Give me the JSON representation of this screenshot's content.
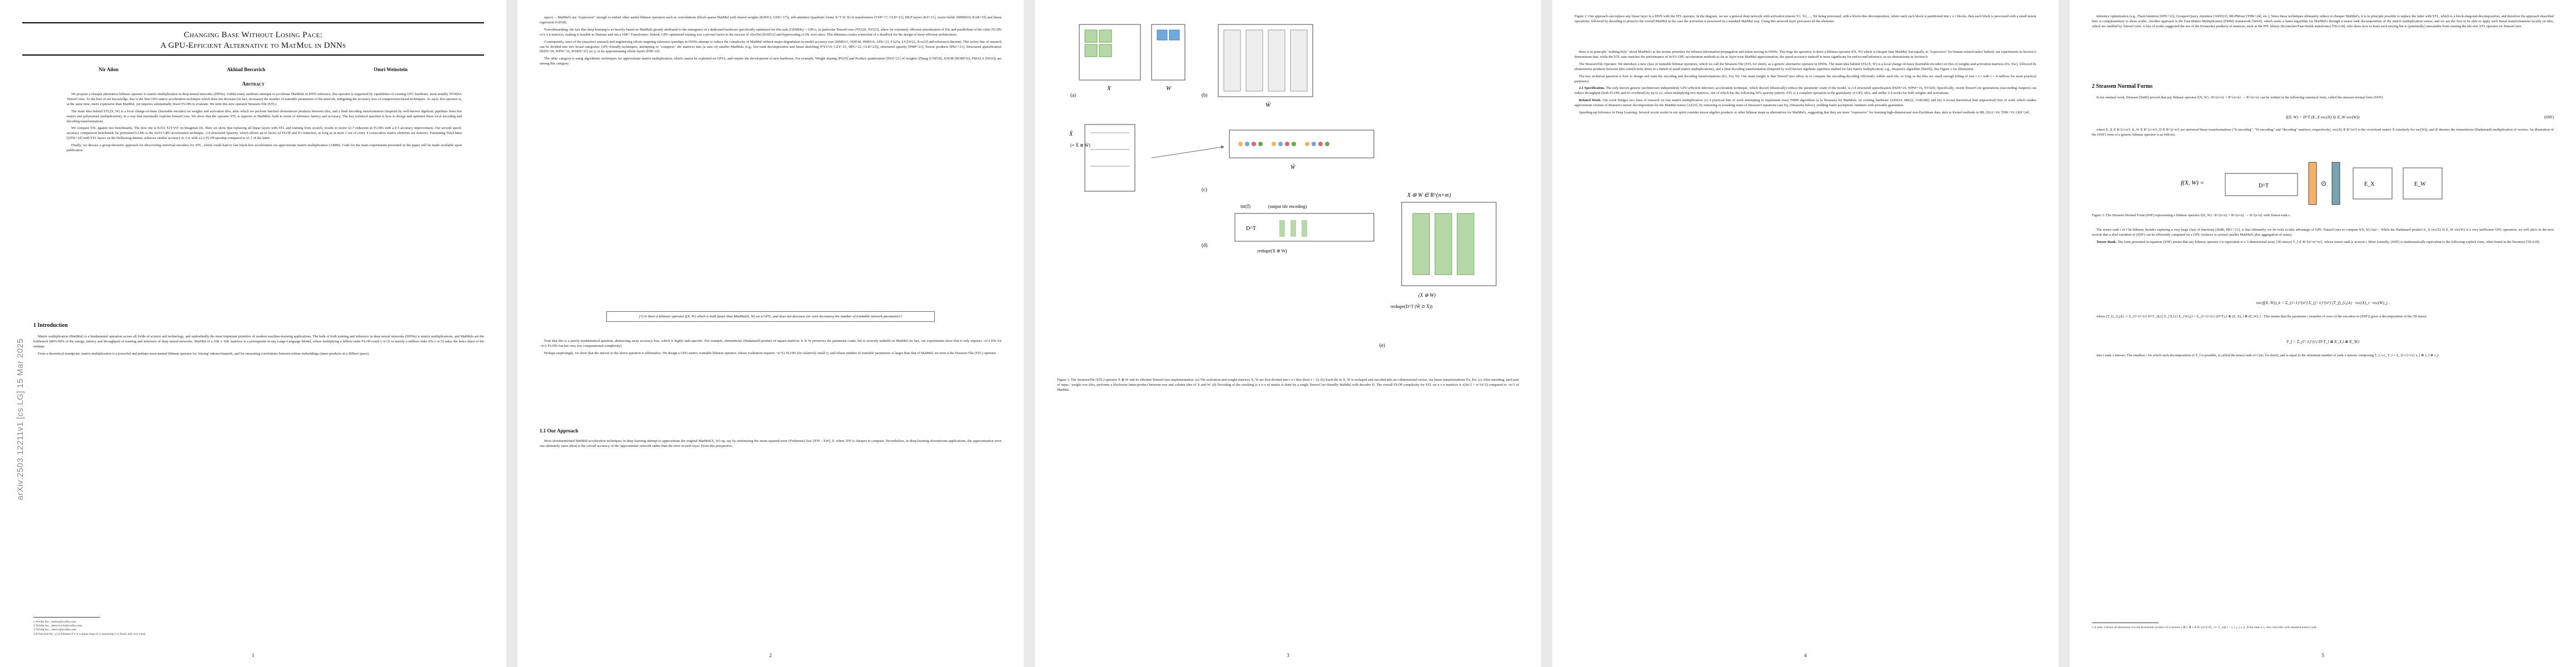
{
  "arxiv_id": "arXiv:2503.12211v1  [cs.LG]  15 Mar 2025",
  "paper": {
    "title_line1": "Changing Base Without Losing Pace:",
    "title_line2": "A GPU-Efficient Alternative to MatMul in DNNs",
    "authors": [
      "Nir Ailon",
      "Akhiad Bercovich",
      "Omri Weinstein"
    ],
    "abstract_heading": "Abstract",
    "abstract_p1": "We propose a cheaper alternative bilinear operator to matrix-multiplication in deep neural networks (DNNs). Unlike many stubborn attempts to accelerate MatMuls in DNN inference, this operator is supported by capabilities of existing GPU hardware, most notably NVIDIA TensorCores. To the best of our knowledge, this is the first GPU-native acceleration technique which does not decrease (in fact, increases) the number of trainable parameters of the network, mitigating the accuracy-loss of compression-based techniques. As such, this operator is, at the same time, more expressive than MatMul, yet requires substantially fewer FLOPs to evaluate. We term this new operator Strassen-Tile (STL).",
    "abstract_p2": "The main idea behind STL(X, W) is a local change-of-basis (learnable encoder) on weights and activation tiles, after which we perform batched elementwise products between tiles, and a final decoding transformation (inspired by well-known algebraic pipelines from fast matrix and polynomial multiplication), in a way that maximally exploits TensorCores. We show that the operator STL is superior to MatMuls, both in terms of inference latency and accuracy. The key technical question is how to design and optimize these local encoding and decoding transformations.",
    "abstract_p3": "We compare STL against two benchmarks. The first one is SoTA T2T-ViT on Imagenet-1K. Here we show that replacing all linear layers with STL and training from scratch, results in factor x2.7 reduction in FLOPs with a 0.5 accuracy improvement. Our second speed-accuracy comparison benchmark for pretrained LLMs is the SoTA GPU-acceleration technique, 2:4 structured Sparsity, which allows up to factor x2 FLOP and IO reduction, as long as at most 2 out of every 4 consecutive matrix elements are nonzero. Finetuning TinyLlama [ZZW+24] with STL layers on the Hellaswag dataset, achieves similar accuracy to 2:4, with x2.2 FLOP speedup compared to x1.7 of the latter.",
    "abstract_p4": "Finally, we discuss a group-theoretic approach for discovering universal encoders for STL, which could lead to fast black-box acceleration via approximate matrix-multiplication (AMM). Code for the main experiments presented in the paper will be made available upon publication.",
    "intro_heading": "1   Introduction",
    "intro_p1": "Matrix multiplication (MatMul) is a fundamental operation across all fields of science and technology, and undoubtedly the most important primitive of modern machine-learning applications. The bulk of both training and inference in deep neural networks (DNNs) is matrix multiplications, and MatMuls are the bottleneck (80%-90% of the energy, latency and throughput) of training and inference of deep neural networks. MatMul of a 16K x 16K matrices is a prerequisite in any Large-Language Model, where multiplying a billion-order FLOP-count (~n^3) or merely a million-order IOs (~n^2) takes the lion's share of the runtime.",
    "intro_p2": "From a theoretical standpoint, matrix multiplication is a powerful and perhaps most natural bilinear operator for 'mixing' tokens/channels, and for measuring correlations between tokens embeddings (inner-products in a Hilbert space).",
    "footnotes": [
      "1 Nvidia Inc., nailon@nvidia.com.",
      "2 Nvidia Inc., abercovich@nvidia.com.",
      "3 Nvidia Inc., omriw@nvidia.com.",
      "4 A function f(x, y) is bilinear if it is a linear map of x; assuming x is fixed, and vice versa."
    ],
    "p2_p1": "space) -- MatMul's are \"expressive\" enough to embed other useful bilinear operators such as convolutions (block-sparse MatMul with shared weights [KSH12, GDG+17]), self-attention (quadratic forms X^T W X) in transformers [VSP+17, CLD+21], MLP layers [KZ+21], vector-fields [MMM19, RAB+19] and linear regression [GH18].",
    "p2_p2": "Notwithstanding, the fact that deep learning is so heavily based on MatMuls greatly attributed to the emergence of a dedicated hardware specifically optimized for this task (GEMMs) -- GPUs, in particular TensorCores [NVI20, NVI23], allow for extremely efficient amortization of IOs and parallelism of the cubic FLOPs of n x n matrices, making it feasible to finetune and run a 10B+ Transformer. Indeed, GPU-optimized training was a pivotal factor in the success of AlexNet [KSH12] and hyperscaling of DL ever since. This dilemma creates somewhat of a deadlock for the design of more efficient architectures.",
    "p2_p3": "Consequently, most of the (massive) research and engineering efforts targeting inference speedups in DNNs attempt to reduce the complexity of MatMul without major degradation in model accuracy (see [HMD15, ODD18, HMD16, AFK+23, FA23a, LVZW22, Xco23] and references therein). This active line of research can be divided into two broad categories: GPU-friendly techniques, attempting to \"compress\" the matrices into (a sum of) smaller MatMuls (e.g., low-rank decomposition and linear sketching [FYV19, CZY+21, HPG+22, CLH+22]), structured sparsity [PMP+21], Tensor products [PKC+21], Structured sparsification [HZH+24, WPW+16, HARN+21] etc.); or by approximating whole layers [FIR+22].",
    "p2_p4": "The other category is using algorithmic techniques for approximate matrix multiplication, which cannot be exploited on GPUs, and require the development of new hardware. For example, Weight sharing [PQ19] and Product quantization [HZZ+21] of weights (Zhang [CNP18], XNOR [RORF16], FMALA [NJ16]) are among this category.",
    "p2_boxq": "(*) Is there a bilinear operator f(X, W) which is both faster than MatMul(X, W) on a GPU, and does not decrease (or even increases) the number of trainable network parameters?",
    "p2_p5": "Note that this is a purely mathematical question, abstracting away accuracy-loss, which is highly task-specific. For example, elementwise (Hadamard) product of square matrices X ⊙ W preserves the parameter count, but is severely underfit on MatMul (in fact, our experiments show that it only requires ~n^2 IOs for ~n^2 FLOPs but has very low computational complexity).",
    "p2_p6": "Perhaps surprisingly, we show that the answer to the above question is affirmative. We design a GPU-native, trainable bilinear operator, whose evaluation requires ~n^3/r FLOPs (for relatively small r), and whose number of trainable parameters is larger than that of MatMul; we term it the Strassen-Tile (STL) operator.",
    "p2_sub_heading": "1.1   Our Approach",
    "p2_p7": "Most aforementioned MatMul-acceleration techniques in deep learning attempt to approximate the original MatMul(X, W) op, say by minimizing the mean-squared-error (Frobenius) loss ||XW - XW||_F, where XW is cheaper to compute. Nevertheless, in deep-learning downstream applications, the approximation error one ultimately cares about is the overall accuracy of the 'approximate' network rather than the error in each layer. From this perspective,",
    "fig1_caption": "Figure 1: The StrassenTile (STL) operator X ⊛ W and its efficient TensorCores implementation. (a) The activation and weight matrices X, W are first divided into t x t tiles (here t = 2); (b) Each tile in X, W is reshaped and encoded into an r-dimensional vector, via linear transformations Ex, Ew. (c) After encoding, each pair of input / weight row tiles, performs a blockwise inner-product between row and column tiles of X and W. (d) Decoding of the resulting (r x n x n) matrix is done by a single TensorCore-friendly MatMul with decoder D. The overall FLOP complexity for STL on n x n matrices is r(3n^2 + n^3/t^2) compared to ~n^3 of MatMul.",
    "p3_para1": "there is in principle \"nothing holy\" about MatMul's as the atomic primitive for bilinear information-propagation and token-mixing in DNNs. This begs the question: Is there a bilinear operator f(X, W) which is cheaper than MatMul, but equally as \"expressive\" for human-related tasks? Indeed, our experiments in Section 6 demonstrate that, while the STL ratio matches the performance of SoTA GPU acceleration methods as far as layer-wise MatMul approximation, the speed-accuracy tradeoff is more significant for end-to-end inference, as we demonstrate in Section 6.",
    "p3_para2": "The StrassenTile Operator. We introduce a new class of trainable bilinear operators, which we call the Strassen-Tile (STL for short), as a generic alternative operator in DNNs. The main idea behind STL(X, W) is a local change-of-basis (learnable encoder) on tiles of weights and activation matrices (Ex, Ew), followed by elementwise products between tiles (which boils down to a bunch of small matrix multiplications), and a final decoding transformation (inspired by well-known algebraic pipelines studied for fast matrix multiplication, e.g., Strassen's algorithm [Str69]), See Figure 1 for illustration.",
    "p3_para3": "The key technical question is how to design and train the encoding and decoding transformations (Ex, Ew, D). Our main insight is that TensorCores allow us to compute the encoding-decoding efficiently within each tile, so long as the tiles are small enough (tiling of size t x t with t = 4 suffices for most practical purposes).",
    "p3_sub1": "2.1 Specification.",
    "p3_para4": "The only known generic (architecture-independent) GPU-efficient inference acceleration technique, which doesn't (drastically) reduce the parameter count of the model, is 2:4 structured sparsification [HZH+24, WPW+16, NVI20]. Specifically, recent TensorCore generations (succeeding Ampere) can reduce throughput (both FLOPs and IO overhead) by up to x2, when multiplying two matrices, one of which has the following 50% sparsity pattern. STL is a complete operation at the granularity of GPU tiles, and unlike 2:4 works for both weights and activations.",
    "p3_related_heading": "Related Work.",
    "p3_related": "Our work bridges two lines of research on fast matrix multiplication: (i) A practical line of work attempting to implement exact FMM algorithms (a la Strassen) for MatMuls, on existing hardware [ADZ24, MK22, GvdG08]; and (ii) A recent theoretical (but impractical) line of work which studies approximate version of Strassen's tensor decomposition for the MatMul tensor [AZ23], by removing or tweaking some of Strassen's equations (see Eq. (Strassen) below), yielding faster asymptotic runtimes with provable guarantees.",
    "p3_speedup": "Speeding-up Inference in Deep Learning. Several recent works in our spirit consider tensor-algebra products or other bilinear maps as alternatives for MatMul's, suggesting that they are more \"expressive\" for learning high-dimensional non-Euclidean data, akin to Kernel methods in ML [XLL+24, THK+19, LRS+24].",
    "fig2_caption": "Figure 2: Our approach can replace any linear layer in a DNN with the STL operator. In the diagram, we see a general deep network with activation tensors X1, X2, ..., Xk being processed, with a block-tiles decomposition, where each such block is partitioned into r x r blocks, then each block is processed with a small tensor operations, followed by decoding to preserve the overall MatMul in the case the activation is processed in a standard MatMul way. Using this network layer processes all the elements.",
    "p4_intro": "inference optimization (e.g., FlashAttention [DFE+22], Grouped Query Attention [AWD23], MLPMixer [THK+24], etc.). Since these techniques ultimately reduce to cheaper MatMul's, it is in principle possible to replace the latter with STL, which is a block-diagonal-decomposition, and therefore the approach described here is complementary to these works. Another approach is the Fast-Matrix-Multiplication (FMM) framework [Str69], which seeks a faster algorithm for MatMul's through a tensor rank decomposition of the matrix multiplication tensor, and we are the first to be able to apply such linear transformations locally on tiles, which are enabled by TensorCores. A line of works suggested the use of the Kronecker products of matrices, such as the PFL library (Kronecker/Fast-Walsh transforms) [TKA18], who show how to learn such mixing but is (potentially) unscalable from running the tile-size STL operator on TensorCores.",
    "p4_sec2_heading": "2   Strassen Normal Forms",
    "p4_sec2_p1": "In his seminal work, Strassen [Str86] proved that any bilinear operator f(X, W) : R^{n×n} × R^{n×n} → R^{n×n} can be written in the following canonical form, called the strassen normal form (SNF):",
    "p4_eq1": "f(X, W) = D^T (E_X vec(X) ⊙ E_W vec(W))",
    "p4_eq1_tag": "(SNF)",
    "p4_sec2_p2": "where E_X ∈ R^{r×n²}, E_W ∈ R^{r×n²}, D ∈ R^{r×n²} are universal linear transformations (\"X-encoding\", \"W-encoding\" and \"decoding\" matrices, respectively), vec(X) ∈ R^{n²} is the vectorized matrix X (similarly for vec(W)), and ⊙ denotes the elementwise (Hadamard) multiplication of vectors. An illustration of the (SNF) form of a generic bilinear operator is as follows:",
    "fig3_caption": "Figure 3: The Strassen-Normal Form (SNF) representing a bilinear operator f(X, W) : R^{n×n} × R^{n×n} → R^{n×n} with Tensor-rank r.",
    "p4_sec2_p3": "The tensor rank r of f be bilinear, besides capturing a very large class of functions [Str86, PKC+21], is that ultimately, we do wish to take advantage of GPU TensorCores to compute f(X, W) fast -- While the Hadamard product E_X vec(X) ⊙ E_W vec(W) is a very inefficient GPU operation, we will show in the next section that a tiled variation of (SNF) can be efficiently computed on a GPU (reduces to several smaller MatMul's plus aggregation of sums).",
    "p4_tensor_rank_heading": "Tensor Rank.",
    "p4_tensor_rank": "The form presented in equation (SNF) means that any bilinear operator f is equivalent to a 3-dimensional array (3D tensor) T_f ∈ R^{n²×n²×n²}, whose tensor rank is at most r. More formally, (SNF) is mathematically equivalent to the following explicit form, often found in the literature [TKA18]:",
    "p4_eq2": "vec(f(X, W))_k = Σ_{i=1}^{n²} Σ_{j=1}^{n²} (T_f)_{i,j,k} · vec(X)_i · vec(W)_j ,",
    "p4_eq3": "where (T_f)_{i,j,k} := Σ_{l=1}^{r} D^T_{k,l} E_{X,l,i} E_{W,l,j} = Σ_{l=1}^{r} (D^T)_l ⊗ (E_X)_l ⊗ (E_W)_l . This means that the parameter r (number of rows of the encoders in (SNF)) gives a decomposition of the 3D tensor",
    "p4_eq4": "T_f = Σ_{l=1}^{r} D^T_l ⊗ E_X,l ⊗ E_W,l",
    "p4_sec2_p4": "into r rank-1 tensors. The smallest r for which such decomposition of T_f is possible, is called the tensor rank of f (tsr, for short), and is equal to the minimum number of rank-1 tensors composing T_f, i.e., T_f = Σ_{l=1}^{r} x_l ⊗ y_l ⊗ z_l.",
    "p4_footnote": "5 A rank-1 tensor of dimension d is the Kronecker product of d vectors x ⊗ y ⊗ z ∈ R^{d×d×d}, i.e. T_{ijk} = x_i y_j z_k. If the rank is 1, this coincides with standard matrix-rank."
  },
  "page_numbers": [
    "1",
    "2",
    "3",
    "4",
    "5"
  ],
  "figure_labels": {
    "a": "(a)",
    "b": "(b)",
    "c": "(c)",
    "d": "(d)",
    "e": "(e)",
    "x_hat_eq": "X̂ = X ⊛ W",
    "x_hat_eq2": "X ⊛ W ∈ R^{n×m}",
    "tsr": "tsr(f)",
    "output_tile": "(output tile encoding)",
    "reshape": "reshape(X ⊛ W)",
    "reshape2": "reshape(D^T (Ŵ ⊙ X̂))",
    "xw": "(X ⊛ W)",
    "dt": "D^T",
    "dt2": "D^T",
    "w_label": "W",
    "x_label": "X",
    "x_hat": "X̂",
    "w_hat": "Ŵ",
    "x_tilde": "X̃",
    "w_tilde": "W̃",
    "x_hat_note": "(= X̂ ⊛ W̃)",
    "f3_f": "f(X, W) =",
    "f3_ex": "E_X",
    "f3_ew": "E_W"
  },
  "colors": {
    "green": "#6aa84f",
    "light_green": "#b6d7a8",
    "blue": "#6fa8dc",
    "orange": "#f6b26b",
    "red": "#e06666",
    "teal": "#76a5af",
    "gray": "#999999"
  }
}
